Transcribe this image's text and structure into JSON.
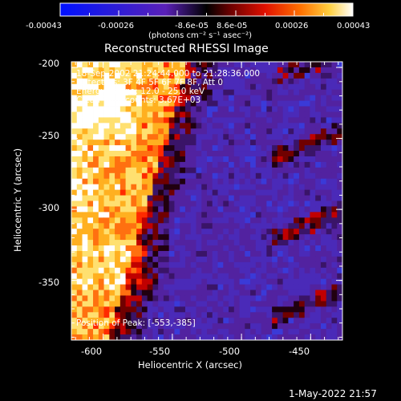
{
  "colorbar": {
    "ticks": [
      "-0.00043",
      "-0.00026",
      "-8.6e-05",
      "8.6e-05",
      "0.00026",
      "0.00043"
    ],
    "unit_label": "(photons cm⁻² s⁻¹ asec⁻²)",
    "range": [
      -0.00043,
      0.00043
    ]
  },
  "chart_data": {
    "type": "heatmap",
    "title": "Reconstructed RHESSI Image",
    "xlabel": "Heliocentric X (arcsec)",
    "ylabel": "Heliocentric Y (arcsec)",
    "xlim": [
      -623,
      -427
    ],
    "ylim": [
      -392,
      -196
    ],
    "x_ticks": [
      "-600",
      "-550",
      "-500",
      "-450"
    ],
    "x_tick_values": [
      -600,
      -550,
      -500,
      -450
    ],
    "y_ticks": [
      "-200",
      "-250",
      "-300",
      "-350"
    ],
    "y_tick_values": [
      -200,
      -250,
      -300,
      -350
    ],
    "info_lines": [
      "18-Sep-2002 21:24:44.000 to 21:28:36.000",
      "Detectors: 3F 4F 5F 6F 7F 8F, Att 0",
      "Energy Range: 12.0 - 25.0 keV",
      "Clean    Total counts: 3.67E+03"
    ],
    "peak_label": "Position of Peak: [-553,-385]",
    "peak": [
      -553,
      -385
    ],
    "colors": {
      "background": "#000000",
      "axes": "#ffffff"
    }
  },
  "timestamp": "1-May-2022 21:57"
}
